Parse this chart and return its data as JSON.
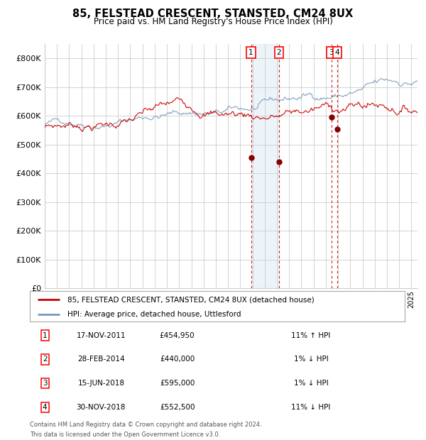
{
  "title": "85, FELSTEAD CRESCENT, STANSTED, CM24 8UX",
  "subtitle": "Price paid vs. HM Land Registry's House Price Index (HPI)",
  "red_label": "85, FELSTEAD CRESCENT, STANSTED, CM24 8UX (detached house)",
  "blue_label": "HPI: Average price, detached house, Uttlesford",
  "transactions": [
    {
      "num": 1,
      "date": "17-NOV-2011",
      "price": 454950,
      "pct": "11%",
      "dir": "↑",
      "decimal_date": 2011.88
    },
    {
      "num": 2,
      "date": "28-FEB-2014",
      "price": 440000,
      "pct": "1%",
      "dir": "↓",
      "decimal_date": 2014.16
    },
    {
      "num": 3,
      "date": "15-JUN-2018",
      "price": 595000,
      "pct": "1%",
      "dir": "↓",
      "decimal_date": 2018.45
    },
    {
      "num": 4,
      "date": "30-NOV-2018",
      "price": 552500,
      "pct": "11%",
      "dir": "↓",
      "decimal_date": 2018.92
    }
  ],
  "shaded_region": [
    2011.88,
    2014.16
  ],
  "footnote1": "Contains HM Land Registry data © Crown copyright and database right 2024.",
  "footnote2": "This data is licensed under the Open Government Licence v3.0.",
  "ylim": [
    0,
    850000
  ],
  "xlim_start": 1995.0,
  "xlim_end": 2025.5,
  "yticks": [
    0,
    100000,
    200000,
    300000,
    400000,
    500000,
    600000,
    700000,
    800000
  ],
  "ytick_labels": [
    "£0",
    "£100K",
    "£200K",
    "£300K",
    "£400K",
    "£500K",
    "£600K",
    "£700K",
    "£800K"
  ],
  "xticks": [
    1995,
    1996,
    1997,
    1998,
    1999,
    2000,
    2001,
    2002,
    2003,
    2004,
    2005,
    2006,
    2007,
    2008,
    2009,
    2010,
    2011,
    2012,
    2013,
    2014,
    2015,
    2016,
    2017,
    2018,
    2019,
    2020,
    2021,
    2022,
    2023,
    2024,
    2025
  ],
  "background_color": "#ffffff",
  "grid_color": "#cccccc",
  "red_line_color": "#cc0000",
  "blue_line_color": "#7799bb",
  "dot_color": "#880000",
  "dashed_line_color": "#cc0000",
  "shade_color": "#cce0f0"
}
